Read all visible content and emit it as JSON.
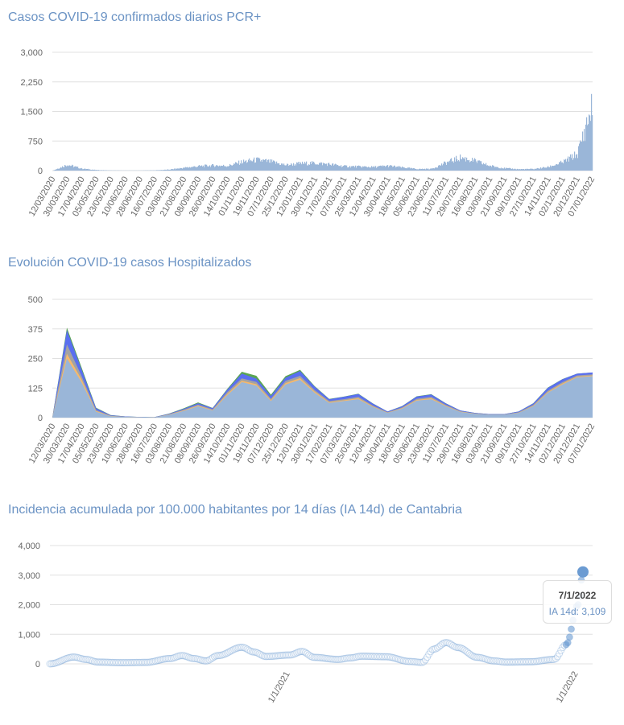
{
  "chart_data": [
    {
      "type": "bar",
      "title": "Casos COVID-19 confirmados diarios PCR+",
      "ylim": [
        0,
        3000
      ],
      "yticks": [
        "0",
        "750",
        "1,500",
        "2,250",
        "3,000"
      ],
      "ytick_values": [
        0,
        750,
        1500,
        2250,
        3000
      ],
      "x_ticks": [
        "12/03/2020",
        "30/03/2020",
        "17/04/2020",
        "05/05/2020",
        "23/05/2020",
        "10/06/2020",
        "28/06/2020",
        "16/07/2020",
        "03/08/2020",
        "21/08/2020",
        "08/09/2020",
        "26/09/2020",
        "14/10/2020",
        "01/11/2020",
        "19/11/2020",
        "07/12/2020",
        "25/12/2020",
        "12/01/2021",
        "30/01/2021",
        "17/02/2021",
        "07/03/2021",
        "25/03/2021",
        "12/04/2021",
        "30/04/2021",
        "18/05/2021",
        "05/06/2021",
        "23/06/2021",
        "11/07/2021",
        "29/07/2021",
        "16/08/2021",
        "03/09/2021",
        "21/09/2021",
        "09/10/2021",
        "27/10/2021",
        "14/11/2021",
        "02/12/2021",
        "20/12/2021",
        "07/01/2022"
      ],
      "series": [
        {
          "name": "Casos PCR+",
          "color": "#9ab6d8",
          "values": [
            0,
            150,
            50,
            15,
            5,
            3,
            3,
            8,
            25,
            70,
            110,
            130,
            120,
            220,
            270,
            220,
            140,
            180,
            190,
            160,
            110,
            100,
            90,
            120,
            80,
            40,
            45,
            200,
            330,
            240,
            120,
            60,
            35,
            40,
            90,
            210,
            420,
            1600
          ],
          "tail": [
            1900,
            2230,
            1400,
            2000
          ]
        }
      ]
    },
    {
      "type": "area",
      "title": "Evolución COVID-19 casos  Hospitalizados",
      "ylim": [
        0,
        500
      ],
      "yticks": [
        "0",
        "125",
        "250",
        "375",
        "500"
      ],
      "ytick_values": [
        0,
        125,
        250,
        375,
        500
      ],
      "x_ticks": [
        "12/03/2020",
        "30/03/2020",
        "17/04/2020",
        "05/05/2020",
        "23/05/2020",
        "10/06/2020",
        "28/06/2020",
        "16/07/2020",
        "03/08/2020",
        "21/08/2020",
        "08/09/2020",
        "26/09/2020",
        "14/10/2020",
        "01/11/2020",
        "19/11/2020",
        "07/12/2020",
        "25/12/2020",
        "12/01/2021",
        "30/01/2021",
        "17/02/2021",
        "07/03/2021",
        "25/03/2021",
        "12/04/2021",
        "30/04/2021",
        "18/05/2021",
        "05/06/2021",
        "23/06/2021",
        "11/07/2021",
        "29/07/2021",
        "16/08/2021",
        "03/09/2021",
        "21/09/2021",
        "09/10/2021",
        "27/10/2021",
        "14/11/2021",
        "02/12/2021",
        "20/12/2021",
        "07/01/2022"
      ],
      "series": [
        {
          "name": "base",
          "color": "#9ab6d8",
          "values": [
            0,
            250,
            150,
            25,
            6,
            3,
            2,
            1,
            12,
            28,
            48,
            30,
            95,
            150,
            135,
            70,
            140,
            160,
            105,
            62,
            70,
            78,
            45,
            20,
            38,
            72,
            78,
            48,
            24,
            16,
            12,
            12,
            20,
            48,
            105,
            140,
            170,
            175
          ]
        },
        {
          "name": "orange",
          "color": "#f7b96a",
          "values": [
            0,
            20,
            12,
            3,
            1,
            0,
            0,
            0,
            1,
            2,
            3,
            2,
            5,
            6,
            6,
            4,
            6,
            7,
            5,
            3,
            3,
            4,
            2,
            1,
            2,
            3,
            4,
            2,
            1,
            1,
            0,
            0,
            1,
            2,
            3,
            4,
            3,
            3
          ]
        },
        {
          "name": "gray",
          "color": "#a3a3a3",
          "values": [
            0,
            40,
            15,
            4,
            1,
            1,
            0,
            0,
            1,
            3,
            4,
            3,
            8,
            10,
            10,
            6,
            9,
            10,
            7,
            5,
            5,
            6,
            4,
            2,
            3,
            5,
            6,
            4,
            2,
            1,
            1,
            1,
            2,
            4,
            6,
            6,
            5,
            5
          ]
        },
        {
          "name": "blue",
          "color": "#5a6ff0",
          "values": [
            0,
            60,
            28,
            8,
            2,
            1,
            1,
            1,
            2,
            4,
            6,
            5,
            10,
            20,
            14,
            12,
            14,
            20,
            14,
            8,
            10,
            12,
            8,
            3,
            5,
            9,
            10,
            6,
            3,
            2,
            2,
            2,
            3,
            6,
            12,
            12,
            8,
            8
          ]
        },
        {
          "name": "green",
          "color": "#5aa552",
          "values": [
            0,
            10,
            8,
            2,
            1,
            0,
            0,
            0,
            1,
            2,
            3,
            1,
            3,
            8,
            12,
            5,
            6,
            5,
            2,
            1,
            1,
            1,
            1,
            0,
            1,
            1,
            1,
            1,
            0,
            0,
            0,
            0,
            0,
            1,
            1,
            1,
            0,
            0
          ]
        }
      ]
    },
    {
      "type": "scatter",
      "title": "Incidencia acumulada por 100.000 habitantes por 14 días (IA 14d) de Cantabria",
      "ylim": [
        0,
        4000
      ],
      "yticks": [
        "0",
        "1,000",
        "2,000",
        "3,000",
        "4,000"
      ],
      "ytick_values": [
        0,
        1000,
        2000,
        3000,
        4000
      ],
      "x_ticks": [
        "1/1/2021",
        "1/1/2022"
      ],
      "x_tick_months": [
        10,
        22
      ],
      "x_months": [
        0,
        1,
        1.5,
        2,
        3,
        4,
        5,
        5.5,
        6,
        6.5,
        7,
        8,
        8.5,
        9,
        10,
        10.5,
        11,
        12,
        12.5,
        13,
        14,
        15,
        15.5,
        16,
        16.5,
        17,
        17.8,
        18.5,
        19,
        20,
        21,
        21.5,
        22,
        22.2
      ],
      "values": [
        0,
        230,
        150,
        60,
        40,
        50,
        180,
        280,
        180,
        100,
        280,
        560,
        400,
        250,
        300,
        420,
        220,
        150,
        200,
        260,
        240,
        80,
        50,
        500,
        720,
        550,
        220,
        100,
        60,
        70,
        150,
        650,
        2000,
        3109
      ],
      "color": "#6b9bd2",
      "tooltip": {
        "date": "7/1/2022",
        "label": "IA 14d: 3,109"
      }
    }
  ]
}
